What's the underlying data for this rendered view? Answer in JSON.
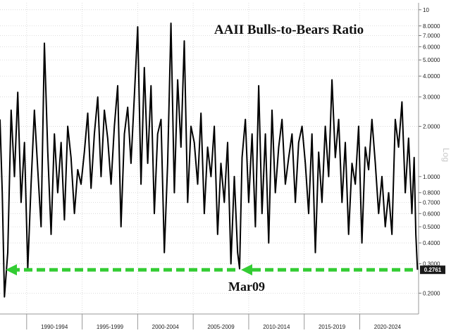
{
  "chart_data": {
    "type": "line",
    "title": "AAII Bulls-to-Bears Ratio",
    "yscale": "log",
    "ylabel": "Log",
    "ylim": [
      0.15,
      11
    ],
    "y_ticks": [
      {
        "value": 10,
        "label": "10"
      },
      {
        "value": 8,
        "label": "8.0000"
      },
      {
        "value": 7,
        "label": "7.0000"
      },
      {
        "value": 6,
        "label": "6.0000"
      },
      {
        "value": 5,
        "label": "5.0000"
      },
      {
        "value": 4,
        "label": "4.0000"
      },
      {
        "value": 3,
        "label": "3.0000"
      },
      {
        "value": 2,
        "label": "2.0000"
      },
      {
        "value": 1,
        "label": "1.0000"
      },
      {
        "value": 0.8,
        "label": "0.8000"
      },
      {
        "value": 0.7,
        "label": "0.7000"
      },
      {
        "value": 0.6,
        "label": "0.6000"
      },
      {
        "value": 0.5,
        "label": "0.5000"
      },
      {
        "value": 0.4,
        "label": "0.4000"
      },
      {
        "value": 0.3,
        "label": "0.3000"
      },
      {
        "value": 0.2,
        "label": "0.2000"
      }
    ],
    "x_range": [
      1987.6,
      2025.3
    ],
    "x_periods": [
      {
        "label": "1990-1994",
        "start": 1990,
        "end": 1995
      },
      {
        "label": "1995-1999",
        "start": 1995,
        "end": 2000
      },
      {
        "label": "2000-2004",
        "start": 2000,
        "end": 2005
      },
      {
        "label": "2005-2009",
        "start": 2005,
        "end": 2010
      },
      {
        "label": "2010-2014",
        "start": 2010,
        "end": 2015
      },
      {
        "label": "2015-2019",
        "start": 2015,
        "end": 2020
      },
      {
        "label": "2020-2024",
        "start": 2020,
        "end": 2025
      }
    ],
    "grid": true,
    "series": [
      {
        "color": "#000000",
        "x": [
          1987.6,
          1987.8,
          1988.0,
          1988.3,
          1988.6,
          1988.9,
          1989.2,
          1989.5,
          1989.8,
          1990.1,
          1990.4,
          1990.7,
          1991.0,
          1991.3,
          1991.6,
          1991.9,
          1992.2,
          1992.5,
          1992.8,
          1993.1,
          1993.4,
          1993.7,
          1994.0,
          1994.3,
          1994.6,
          1994.9,
          1995.2,
          1995.5,
          1995.8,
          1996.1,
          1996.4,
          1996.7,
          1997.0,
          1997.3,
          1997.6,
          1997.9,
          1998.2,
          1998.5,
          1998.8,
          1999.1,
          1999.4,
          1999.7,
          2000.0,
          2000.3,
          2000.6,
          2000.9,
          2001.2,
          2001.5,
          2001.8,
          2002.1,
          2002.4,
          2002.7,
          2003.0,
          2003.3,
          2003.6,
          2003.9,
          2004.2,
          2004.5,
          2004.8,
          2005.1,
          2005.4,
          2005.7,
          2006.0,
          2006.3,
          2006.6,
          2006.9,
          2007.2,
          2007.5,
          2007.8,
          2008.1,
          2008.4,
          2008.7,
          2009.0,
          2009.18,
          2009.4,
          2009.7,
          2010.0,
          2010.3,
          2010.6,
          2010.9,
          2011.2,
          2011.5,
          2011.8,
          2012.1,
          2012.4,
          2012.7,
          2013.0,
          2013.3,
          2013.6,
          2013.9,
          2014.2,
          2014.5,
          2014.8,
          2015.1,
          2015.4,
          2015.7,
          2016.0,
          2016.3,
          2016.6,
          2016.9,
          2017.2,
          2017.5,
          2017.8,
          2018.1,
          2018.4,
          2018.7,
          2019.0,
          2019.3,
          2019.6,
          2019.9,
          2020.2,
          2020.5,
          2020.8,
          2021.1,
          2021.4,
          2021.7,
          2022.0,
          2022.3,
          2022.6,
          2022.9,
          2023.2,
          2023.5,
          2023.8,
          2024.1,
          2024.4,
          2024.7,
          2024.9,
          2025.05,
          2025.2
        ],
        "y": [
          2.2,
          0.8,
          0.19,
          0.35,
          2.5,
          1.0,
          3.2,
          0.7,
          1.6,
          0.28,
          0.9,
          2.5,
          1.1,
          0.5,
          6.3,
          1.4,
          0.45,
          1.8,
          0.8,
          1.6,
          0.55,
          2.0,
          1.3,
          0.6,
          1.1,
          0.9,
          1.4,
          2.4,
          0.85,
          1.8,
          3.0,
          1.0,
          2.5,
          1.7,
          0.9,
          2.0,
          3.5,
          0.5,
          1.8,
          2.6,
          1.2,
          3.0,
          7.9,
          0.9,
          4.5,
          1.2,
          3.5,
          0.6,
          1.8,
          2.2,
          0.35,
          1.2,
          8.3,
          0.8,
          3.8,
          1.5,
          6.5,
          0.7,
          2.0,
          1.6,
          0.9,
          2.4,
          0.6,
          1.5,
          1.0,
          2.0,
          0.45,
          1.2,
          0.7,
          1.6,
          0.3,
          1.0,
          0.35,
          0.28,
          1.3,
          2.2,
          0.7,
          1.8,
          0.5,
          3.5,
          0.6,
          1.8,
          0.4,
          2.5,
          0.8,
          1.5,
          2.2,
          0.9,
          1.3,
          1.8,
          0.7,
          1.6,
          2.0,
          1.2,
          0.6,
          1.8,
          0.35,
          1.4,
          0.7,
          2.0,
          1.0,
          3.8,
          1.3,
          2.2,
          0.7,
          1.6,
          0.45,
          1.2,
          0.9,
          2.0,
          0.4,
          1.5,
          1.1,
          2.2,
          1.2,
          0.6,
          1.0,
          0.5,
          0.8,
          0.45,
          2.2,
          1.5,
          2.8,
          0.8,
          1.7,
          0.6,
          1.3,
          0.45,
          0.2761
        ]
      }
    ],
    "last_value_label": "0.2761",
    "annotations": [
      {
        "text": "Mar09",
        "target_x": 2009.18,
        "target_y": 0.2761,
        "color": "#33cc33",
        "style": "dashed-arrows"
      }
    ]
  }
}
